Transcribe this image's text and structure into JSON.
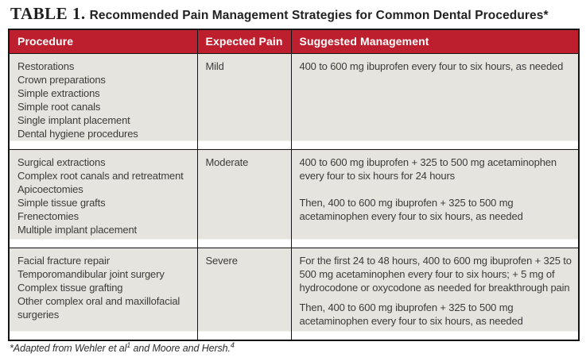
{
  "title": {
    "label": "TABLE 1.",
    "caption": "Recommended Pain Management Strategies for Common Dental Procedures*"
  },
  "colors": {
    "header_bg": "#be1f2e",
    "header_text": "#ffffff",
    "cell_bg": "#e6e4de",
    "border": "#151515",
    "body_text": "#3b3b3b"
  },
  "table": {
    "columns": [
      "Procedure",
      "Expected Pain",
      "Suggested Management"
    ],
    "rows": [
      {
        "procedures": [
          "Restorations",
          "Crown preparations",
          "Simple extractions",
          "Simple root canals",
          "Single implant placement",
          "Dental hygiene procedures"
        ],
        "expected_pain": "Mild",
        "management": [
          "400 to 600 mg ibuprofen every four to six hours, as needed"
        ]
      },
      {
        "procedures": [
          "Surgical extractions",
          "Complex root canals and retreatment",
          "Apicoectomies",
          "Simple tissue grafts",
          "Frenectomies",
          "Multiple implant placement"
        ],
        "expected_pain": "Moderate",
        "management": [
          "400 to 600 mg ibuprofen + 325 to 500 mg acetaminophen every four to six hours for 24 hours",
          "Then, 400 to 600 mg ibuprofen + 325 to 500 mg acetaminophen every four to six hours, as needed"
        ]
      },
      {
        "procedures": [
          "Facial fracture repair",
          "Temporomandibular joint surgery",
          "Complex tissue grafting",
          "Other complex oral and maxillofacial surgeries"
        ],
        "expected_pain": "Severe",
        "management": [
          "For the first 24 to 48 hours, 400 to 600 mg ibuprofen + 325 to 500 mg acetaminophen every four to six hours; + 5 mg of hydrocodone or oxycodone as needed for breakthrough pain",
          "Then, 400 to 600 mg ibuprofen + 325 to 500 mg acetaminophen every four to six hours, as needed"
        ]
      }
    ]
  },
  "footnote": {
    "part1": "*Adapted from Wehler et al",
    "sup1": "1",
    "part2": " and Moore and Hersh.",
    "sup2": "4"
  }
}
